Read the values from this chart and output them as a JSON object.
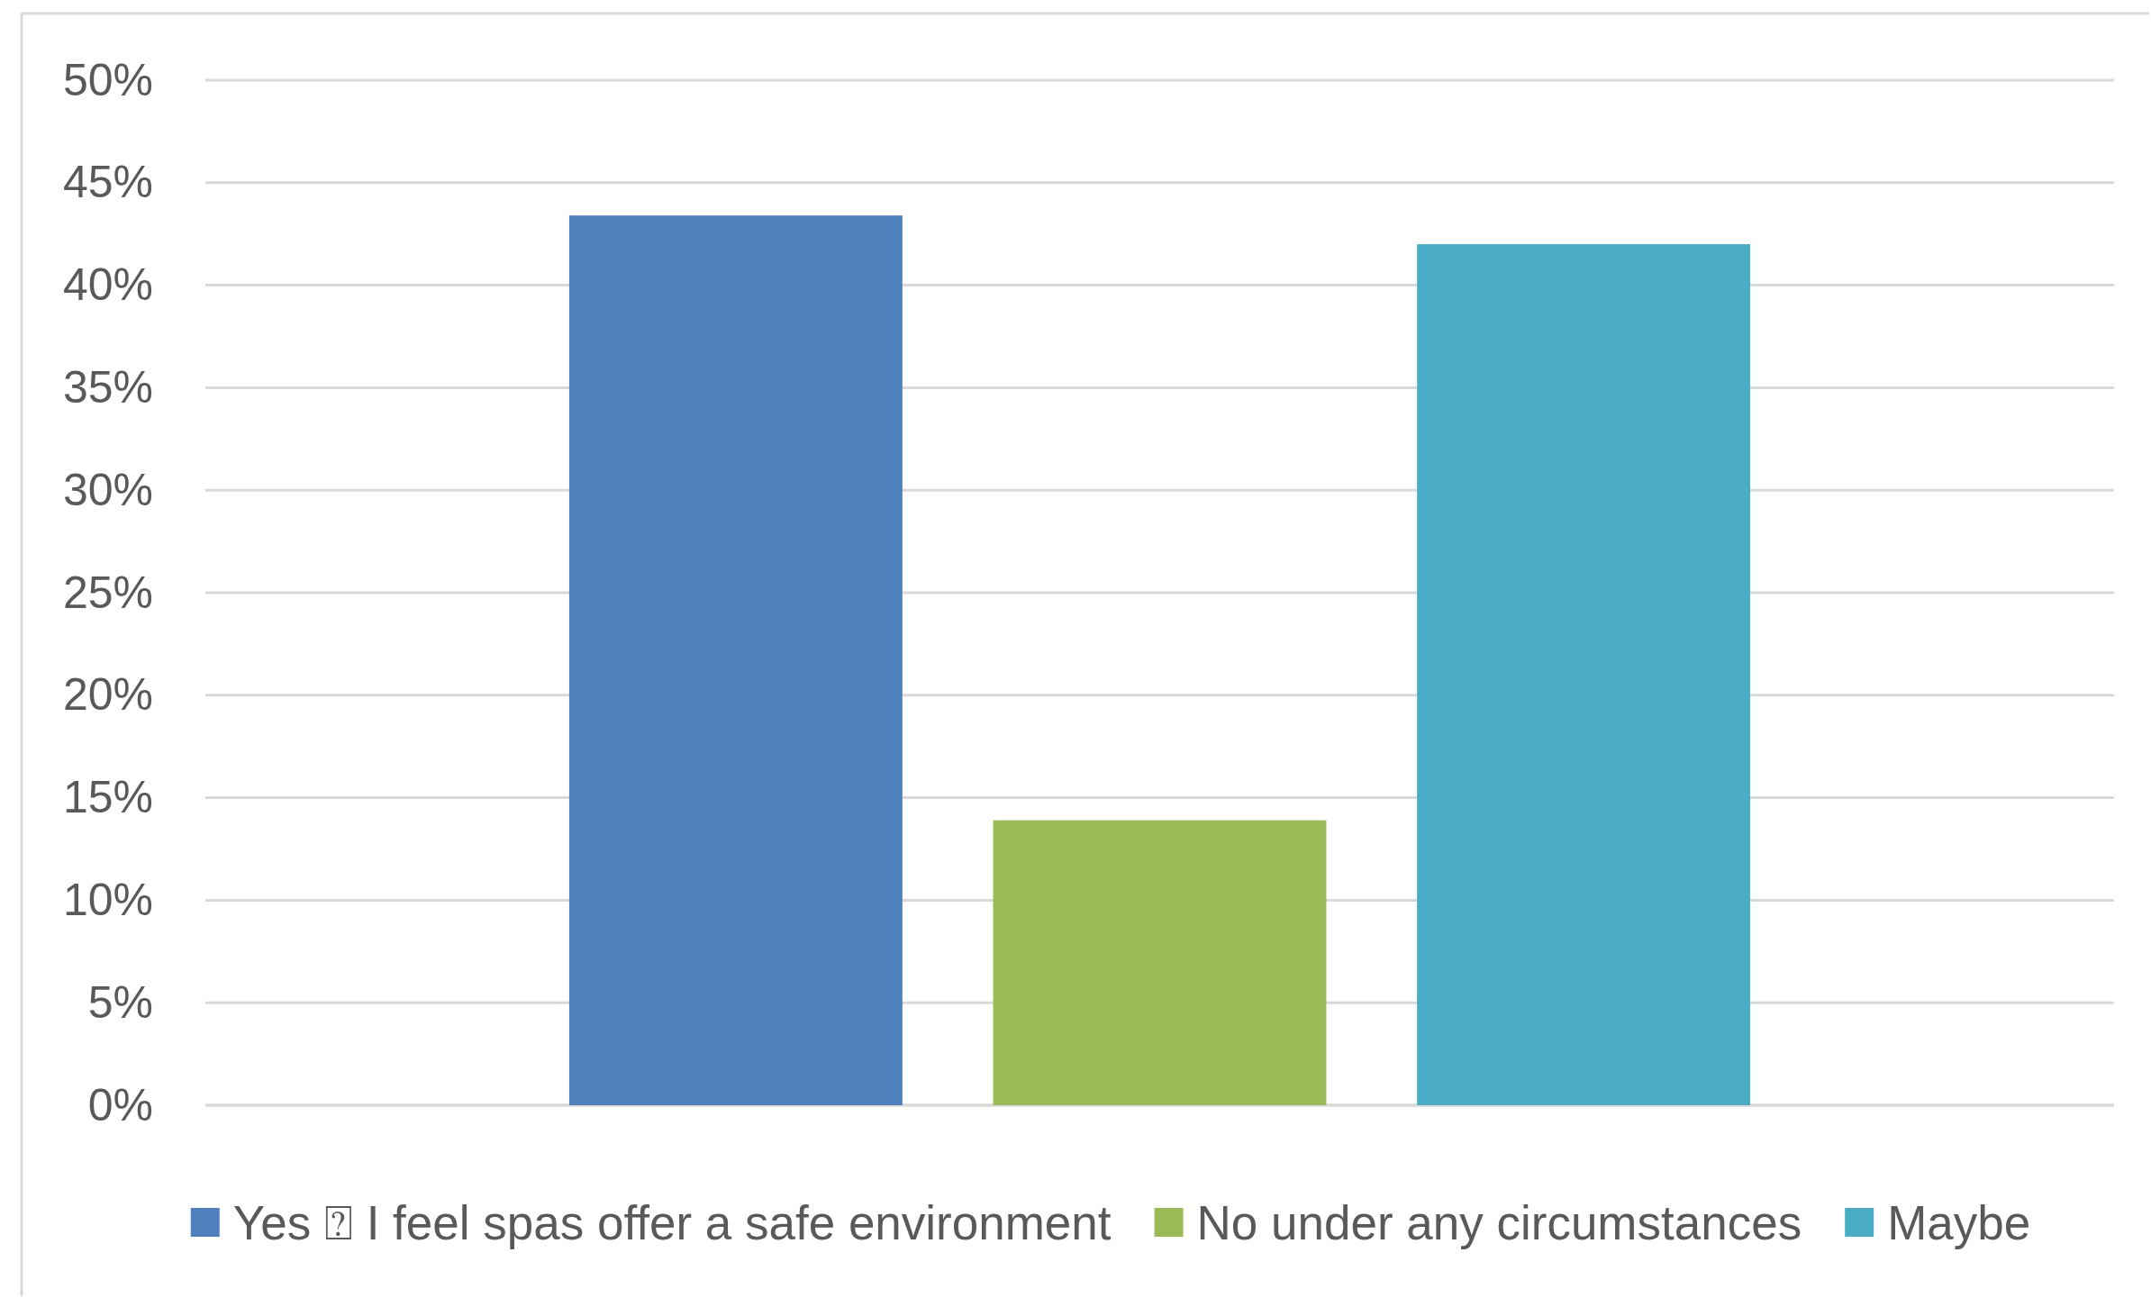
{
  "chart_data": {
    "type": "bar",
    "categories": [
      null
    ],
    "series": [
      {
        "name": "Yes ⍰ I feel spas offer a safe environment",
        "color": "#4f81bd",
        "values": [
          43.4
        ]
      },
      {
        "name": "No under any circumstances",
        "color": "#9bbb59",
        "values": [
          13.9
        ]
      },
      {
        "name": "Maybe",
        "color": "#4bacc6",
        "values": [
          42.0
        ]
      }
    ],
    "ylim": [
      0,
      50
    ],
    "yticks": [
      {
        "value": 0,
        "label": "0%"
      },
      {
        "value": 5,
        "label": "5%"
      },
      {
        "value": 10,
        "label": "10%"
      },
      {
        "value": 15,
        "label": "15%"
      },
      {
        "value": 20,
        "label": "20%"
      },
      {
        "value": 25,
        "label": "25%"
      },
      {
        "value": 30,
        "label": "30%"
      },
      {
        "value": 35,
        "label": "35%"
      },
      {
        "value": 40,
        "label": "40%"
      },
      {
        "value": 45,
        "label": "45%"
      },
      {
        "value": 50,
        "label": "50%"
      }
    ],
    "grid": "y",
    "legend": "bottom"
  }
}
